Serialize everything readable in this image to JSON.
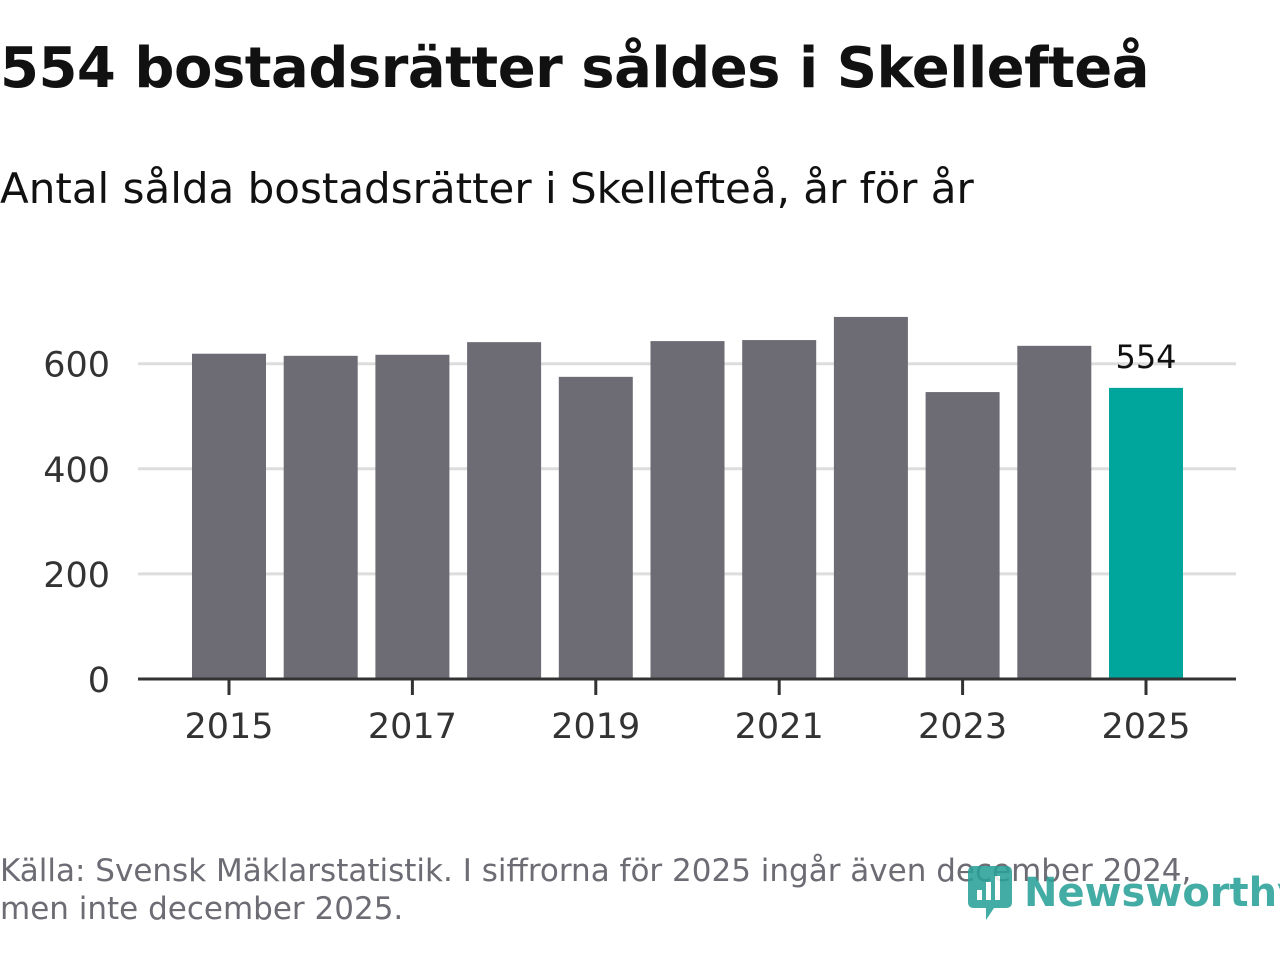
{
  "title": "554 bostadsrätter såldes i Skellefteå",
  "subtitle": "Antal sålda bostadsrätter i Skellefteå, år för år",
  "source": "Källa: Svensk Mäklarstatistik. I siffrorna för 2025 ingår även december 2024, men inte december 2025.",
  "logo": {
    "text": "Newsworthy",
    "icon": "newsworthy-logo-icon"
  },
  "colors": {
    "bar": "#6d6c74",
    "highlight": "#00a69c",
    "grid": "#dddddd",
    "axis": "#333333"
  },
  "chart_data": {
    "type": "bar",
    "title": "554 bostadsrätter såldes i Skellefteå",
    "subtitle": "Antal sålda bostadsrätter i Skellefteå, år för år",
    "xlabel": "",
    "ylabel": "",
    "categories": [
      "2015",
      "2016",
      "2017",
      "2018",
      "2019",
      "2020",
      "2021",
      "2022",
      "2023",
      "2024",
      "2025"
    ],
    "values": [
      619,
      615,
      617,
      641,
      575,
      643,
      645,
      689,
      546,
      634,
      554
    ],
    "highlight_index": 10,
    "value_label": "554",
    "x_tick_labels": [
      "2015",
      "2017",
      "2019",
      "2021",
      "2023",
      "2025"
    ],
    "y_ticks": [
      0,
      200,
      400,
      600
    ],
    "ylim": [
      0,
      700
    ],
    "grid": true
  }
}
